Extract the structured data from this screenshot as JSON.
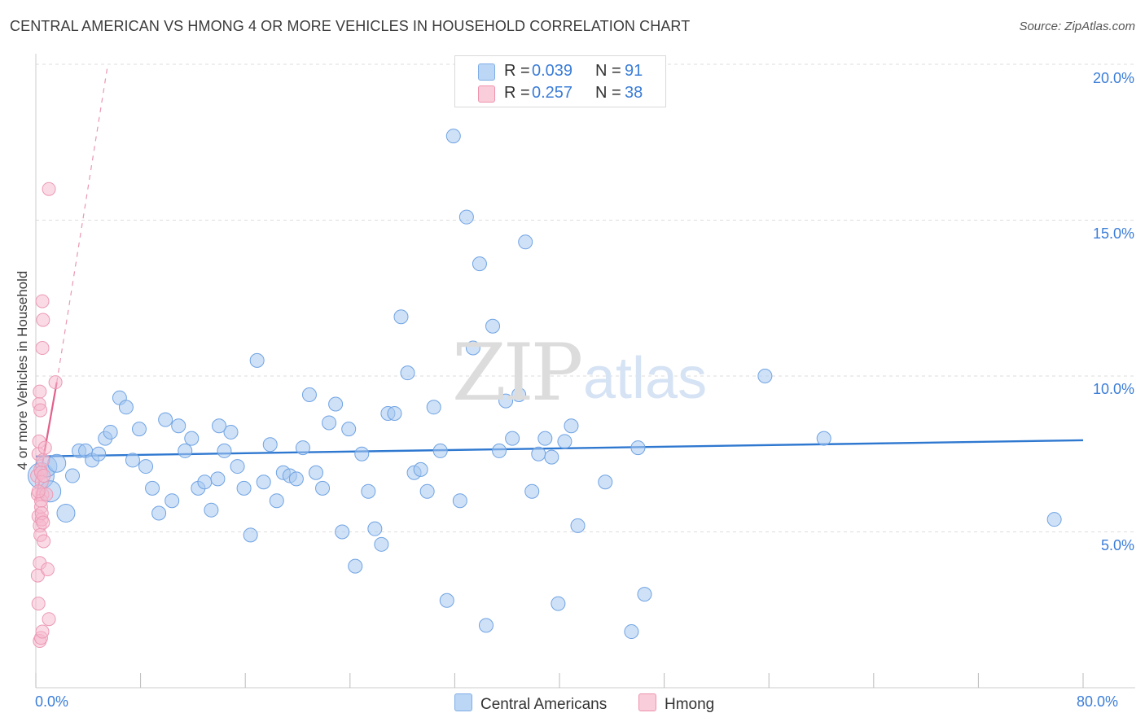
{
  "header": {
    "title": "CENTRAL AMERICAN VS HMONG 4 OR MORE VEHICLES IN HOUSEHOLD CORRELATION CHART",
    "source": "Source: ZipAtlas.com"
  },
  "watermark": {
    "zip": "ZIP",
    "atlas": "atlas"
  },
  "legend_top": {
    "rows": [
      {
        "r_label": "R =",
        "r_value": "0.039",
        "n_label": "N =",
        "n_value": "91",
        "color": "#a8c8f0"
      },
      {
        "r_label": "R =",
        "r_value": "0.257",
        "n_label": "N =",
        "n_value": "38",
        "color": "#f6b8cb"
      }
    ]
  },
  "legend_bottom": {
    "items": [
      {
        "label": "Central Americans",
        "color": "#a8c8f0"
      },
      {
        "label": "Hmong",
        "color": "#f6b8cb"
      }
    ]
  },
  "chart_data": {
    "type": "scatter",
    "title": "CENTRAL AMERICAN VS HMONG 4 OR MORE VEHICLES IN HOUSEHOLD CORRELATION CHART",
    "xlabel": "",
    "ylabel": "4 or more Vehicles in Household",
    "xlim": [
      0,
      80
    ],
    "ylim": [
      0,
      20
    ],
    "x_tick_labels": [
      "0.0%",
      "80.0%"
    ],
    "y_tick_labels": [
      "5.0%",
      "10.0%",
      "15.0%",
      "20.0%"
    ],
    "y_ticks": [
      5,
      10,
      15,
      20
    ],
    "grid": true,
    "legend_placement": "top-center",
    "series": [
      {
        "name": "Central Americans",
        "color": "#5b9be0",
        "fill": "#a8c8f0",
        "trend": {
          "x": [
            0,
            80
          ],
          "y": [
            7.42,
            7.94
          ]
        },
        "points": [
          [
            0.4,
            6.8
          ],
          [
            0.8,
            7.1
          ],
          [
            1.1,
            6.3
          ],
          [
            1.6,
            7.2
          ],
          [
            2.3,
            5.6
          ],
          [
            2.8,
            6.8
          ],
          [
            3.3,
            7.6
          ],
          [
            3.8,
            7.6
          ],
          [
            4.3,
            7.3
          ],
          [
            4.8,
            7.5
          ],
          [
            5.3,
            8.0
          ],
          [
            5.7,
            8.2
          ],
          [
            6.4,
            9.3
          ],
          [
            6.9,
            9.0
          ],
          [
            7.4,
            7.3
          ],
          [
            7.9,
            8.3
          ],
          [
            8.4,
            7.1
          ],
          [
            8.9,
            6.4
          ],
          [
            9.4,
            5.6
          ],
          [
            9.9,
            8.6
          ],
          [
            10.4,
            6.0
          ],
          [
            10.9,
            8.4
          ],
          [
            11.4,
            7.6
          ],
          [
            11.9,
            8.0
          ],
          [
            12.4,
            6.4
          ],
          [
            12.9,
            6.6
          ],
          [
            13.4,
            5.7
          ],
          [
            13.9,
            6.7
          ],
          [
            14.4,
            7.6
          ],
          [
            14.9,
            8.2
          ],
          [
            15.4,
            7.1
          ],
          [
            15.9,
            6.4
          ],
          [
            16.4,
            4.9
          ],
          [
            16.9,
            10.5
          ],
          [
            17.4,
            6.6
          ],
          [
            17.9,
            7.8
          ],
          [
            18.4,
            6.0
          ],
          [
            18.9,
            6.9
          ],
          [
            19.4,
            6.8
          ],
          [
            19.9,
            6.7
          ],
          [
            20.4,
            7.7
          ],
          [
            20.9,
            9.4
          ],
          [
            21.4,
            6.9
          ],
          [
            21.9,
            6.4
          ],
          [
            22.4,
            8.5
          ],
          [
            22.9,
            9.1
          ],
          [
            23.4,
            5.0
          ],
          [
            23.9,
            8.3
          ],
          [
            24.4,
            3.9
          ],
          [
            24.9,
            7.5
          ],
          [
            25.4,
            6.3
          ],
          [
            25.9,
            5.1
          ],
          [
            26.4,
            4.6
          ],
          [
            26.9,
            8.8
          ],
          [
            27.4,
            8.8
          ],
          [
            27.9,
            11.9
          ],
          [
            28.4,
            10.1
          ],
          [
            28.9,
            6.9
          ],
          [
            29.4,
            7.0
          ],
          [
            29.9,
            6.3
          ],
          [
            30.4,
            9.0
          ],
          [
            30.9,
            7.6
          ],
          [
            31.4,
            2.8
          ],
          [
            31.9,
            17.7
          ],
          [
            32.4,
            6.0
          ],
          [
            32.9,
            15.1
          ],
          [
            33.4,
            10.9
          ],
          [
            33.9,
            13.6
          ],
          [
            34.4,
            2.0
          ],
          [
            34.9,
            11.6
          ],
          [
            35.4,
            7.6
          ],
          [
            35.9,
            9.2
          ],
          [
            36.4,
            8.0
          ],
          [
            36.9,
            9.4
          ],
          [
            37.4,
            14.3
          ],
          [
            37.9,
            6.3
          ],
          [
            38.4,
            7.5
          ],
          [
            38.9,
            8.0
          ],
          [
            39.4,
            7.4
          ],
          [
            39.9,
            2.7
          ],
          [
            40.4,
            7.9
          ],
          [
            40.9,
            8.4
          ],
          [
            41.4,
            5.2
          ],
          [
            43.5,
            6.6
          ],
          [
            45.5,
            1.8
          ],
          [
            46.0,
            7.7
          ],
          [
            46.5,
            3.0
          ],
          [
            55.7,
            10.0
          ],
          [
            60.2,
            8.0
          ],
          [
            77.8,
            5.4
          ],
          [
            14.0,
            8.4
          ]
        ]
      },
      {
        "name": "Hmong",
        "color": "#e0608a",
        "fill": "#f6b8cb",
        "trend_solid": {
          "x": [
            0,
            1.6
          ],
          "y": [
            6.0,
            9.8
          ]
        },
        "trend_dashed": {
          "x": [
            1.6,
            5.5
          ],
          "y": [
            9.8,
            20.0
          ]
        },
        "points": [
          [
            0.1,
            6.8
          ],
          [
            0.15,
            6.2
          ],
          [
            0.2,
            7.5
          ],
          [
            0.2,
            5.5
          ],
          [
            0.25,
            9.1
          ],
          [
            0.3,
            5.2
          ],
          [
            0.3,
            4.0
          ],
          [
            0.15,
            3.6
          ],
          [
            0.2,
            2.7
          ],
          [
            0.35,
            7.0
          ],
          [
            0.4,
            6.9
          ],
          [
            0.45,
            6.6
          ],
          [
            0.5,
            6.2
          ],
          [
            0.4,
            5.8
          ],
          [
            0.45,
            5.4
          ],
          [
            0.35,
            4.9
          ],
          [
            0.5,
            12.4
          ],
          [
            0.55,
            11.8
          ],
          [
            0.5,
            10.9
          ],
          [
            0.3,
            9.5
          ],
          [
            0.25,
            7.9
          ],
          [
            0.55,
            7.3
          ],
          [
            0.6,
            6.8
          ],
          [
            0.4,
            6.0
          ],
          [
            0.45,
            5.6
          ],
          [
            0.55,
            5.3
          ],
          [
            0.6,
            4.7
          ],
          [
            0.3,
            1.5
          ],
          [
            0.4,
            1.6
          ],
          [
            0.5,
            1.8
          ],
          [
            0.8,
            6.2
          ],
          [
            0.9,
            3.8
          ],
          [
            1.0,
            2.2
          ],
          [
            1.0,
            16.0
          ],
          [
            1.5,
            9.8
          ],
          [
            0.2,
            6.3
          ],
          [
            0.35,
            8.9
          ],
          [
            0.7,
            7.7
          ]
        ]
      }
    ]
  }
}
